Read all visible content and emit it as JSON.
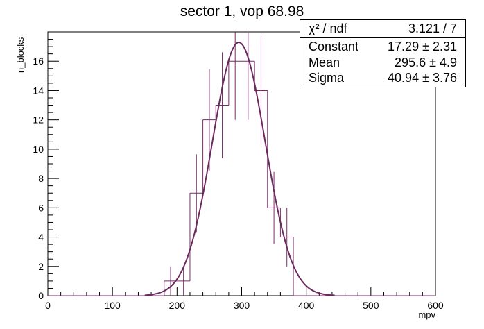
{
  "chart_data": {
    "type": "histogram",
    "title": "sector 1, vop 68.98",
    "xlabel": "mpv",
    "ylabel": "n_blocks",
    "xlim": [
      0,
      600
    ],
    "ylim": [
      0,
      18
    ],
    "x_ticks": [
      0,
      100,
      200,
      300,
      400,
      500,
      600
    ],
    "y_ticks": [
      0,
      2,
      4,
      6,
      8,
      10,
      12,
      14,
      16
    ],
    "bin_width": 20,
    "bins": [
      {
        "x": 180,
        "y": 1,
        "err": 1.0
      },
      {
        "x": 200,
        "y": 1,
        "err": 1.0
      },
      {
        "x": 220,
        "y": 7,
        "err": 2.65
      },
      {
        "x": 240,
        "y": 12,
        "err": 3.46
      },
      {
        "x": 260,
        "y": 13,
        "err": 3.61
      },
      {
        "x": 280,
        "y": 16,
        "err": 4.0
      },
      {
        "x": 300,
        "y": 16,
        "err": 4.0
      },
      {
        "x": 320,
        "y": 14,
        "err": 3.74
      },
      {
        "x": 340,
        "y": 6,
        "err": 2.45
      },
      {
        "x": 360,
        "y": 4,
        "err": 2.0
      }
    ],
    "fit": {
      "function": "gaus",
      "constant": 17.29,
      "mean": 295.6,
      "sigma": 40.94
    },
    "colors": {
      "histogram": "#7a2a6a",
      "fit": "#6a2a5e"
    }
  },
  "stats": {
    "rows": [
      {
        "key": "χ² / ndf",
        "value": "3.121 / 7"
      },
      {
        "key": "Constant",
        "value": "17.29 ± 2.31"
      },
      {
        "key": "Mean",
        "value": "295.6 ± 4.9"
      },
      {
        "key": "Sigma",
        "value": "40.94 ± 3.76"
      }
    ]
  }
}
